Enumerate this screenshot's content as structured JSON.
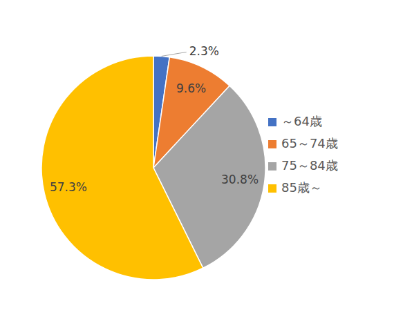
{
  "chart_data": {
    "type": "pie",
    "categories": [
      "～64歳",
      "65～74歳",
      "75～84歳",
      "85歳～"
    ],
    "values": [
      2.3,
      9.6,
      30.8,
      57.3
    ],
    "value_labels": [
      "2.3%",
      "9.6%",
      "30.8%",
      "57.3%"
    ],
    "colors": [
      "#4472c4",
      "#ed7d31",
      "#a5a5a5",
      "#ffc000"
    ],
    "data_labels": true,
    "legend": "right"
  }
}
